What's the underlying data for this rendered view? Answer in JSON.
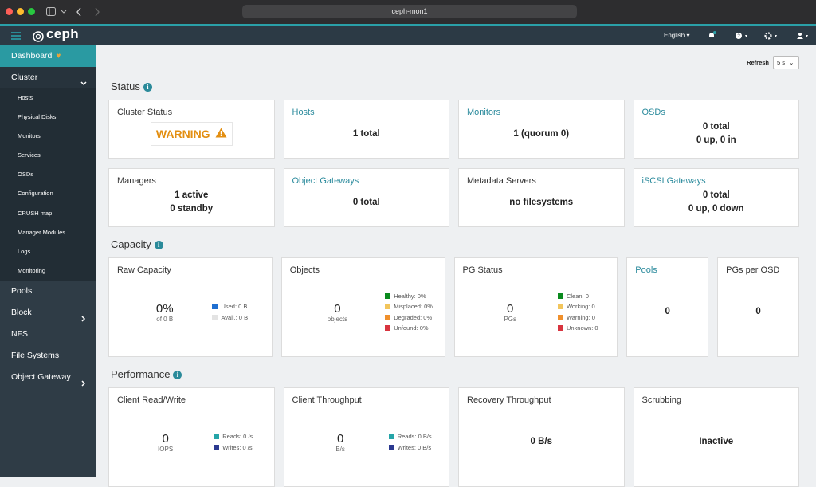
{
  "browser": {
    "url": "ceph-mon1"
  },
  "navbar": {
    "brand": "ceph",
    "language": "English"
  },
  "sidebar": {
    "items": [
      {
        "label": "Dashboard",
        "active": true
      },
      {
        "label": "Cluster",
        "expanded": true,
        "children": [
          "Hosts",
          "Physical Disks",
          "Monitors",
          "Services",
          "OSDs",
          "Configuration",
          "CRUSH map",
          "Manager Modules",
          "Logs",
          "Monitoring"
        ]
      },
      {
        "label": "Pools"
      },
      {
        "label": "Block",
        "submenu": true
      },
      {
        "label": "NFS"
      },
      {
        "label": "File Systems"
      },
      {
        "label": "Object Gateway",
        "submenu": true
      }
    ]
  },
  "refresh": {
    "label": "Refresh",
    "value": "5 s"
  },
  "sections": [
    {
      "title": "Status",
      "cards": [
        {
          "title": "Cluster Status",
          "status": "WARNING"
        },
        {
          "title": "Hosts",
          "link": true,
          "lines": [
            "1 total"
          ]
        },
        {
          "title": "Monitors",
          "link": true,
          "lines": [
            "1 (quorum 0)"
          ]
        },
        {
          "title": "OSDs",
          "link": true,
          "lines": [
            "0 total",
            "0 up, 0 in"
          ]
        },
        {
          "title": "Managers",
          "lines": [
            "1 active",
            "0 standby"
          ]
        },
        {
          "title": "Object Gateways",
          "link": true,
          "lines": [
            "0 total"
          ]
        },
        {
          "title": "Metadata Servers",
          "lines": [
            "no filesystems"
          ]
        },
        {
          "title": "iSCSI Gateways",
          "link": true,
          "lines": [
            "0 total",
            "0 up, 0 down"
          ]
        }
      ]
    },
    {
      "title": "Capacity",
      "cards": [
        {
          "title": "Raw Capacity",
          "center": {
            "value": "0%",
            "caption": "of 0 B"
          },
          "legend": [
            {
              "label": "Used: 0 B",
              "color": "#1f6fd1"
            },
            {
              "label": "Avail.: 0 B",
              "color": "#e3e3e3"
            }
          ]
        },
        {
          "title": "Objects",
          "center": {
            "value": "0",
            "caption": "objects"
          },
          "legend": [
            {
              "label": "Healthy: 0%",
              "color": "#0a8a1e"
            },
            {
              "label": "Misplaced: 0%",
              "color": "#f2c55c"
            },
            {
              "label": "Degraded: 0%",
              "color": "#f0902c"
            },
            {
              "label": "Unfound: 0%",
              "color": "#d8343f"
            }
          ]
        },
        {
          "title": "PG Status",
          "center": {
            "value": "0",
            "caption": "PGs"
          },
          "legend": [
            {
              "label": "Clean: 0",
              "color": "#0a8a1e"
            },
            {
              "label": "Working: 0",
              "color": "#f2c55c"
            },
            {
              "label": "Warning: 0",
              "color": "#f0902c"
            },
            {
              "label": "Unknown: 0",
              "color": "#d8343f"
            }
          ]
        },
        {
          "title": "Pools",
          "link": true,
          "lines": [
            "0"
          ]
        },
        {
          "title": "PGs per OSD",
          "lines": [
            "0"
          ]
        }
      ]
    },
    {
      "title": "Performance",
      "cards": [
        {
          "title": "Client Read/Write",
          "center": {
            "value": "0",
            "caption": "IOPS"
          },
          "legend": [
            {
              "label": "Reads: 0 /s",
              "color": "#25a5a8"
            },
            {
              "label": "Writes: 0 /s",
              "color": "#2b3990"
            }
          ]
        },
        {
          "title": "Client Throughput",
          "center": {
            "value": "0",
            "caption": "B/s"
          },
          "legend": [
            {
              "label": "Reads: 0 B/s",
              "color": "#25a5a8"
            },
            {
              "label": "Writes: 0 B/s",
              "color": "#2b3990"
            }
          ]
        },
        {
          "title": "Recovery Throughput",
          "lines": [
            "0 B/s"
          ]
        },
        {
          "title": "Scrubbing",
          "lines": [
            "Inactive"
          ]
        }
      ]
    }
  ]
}
